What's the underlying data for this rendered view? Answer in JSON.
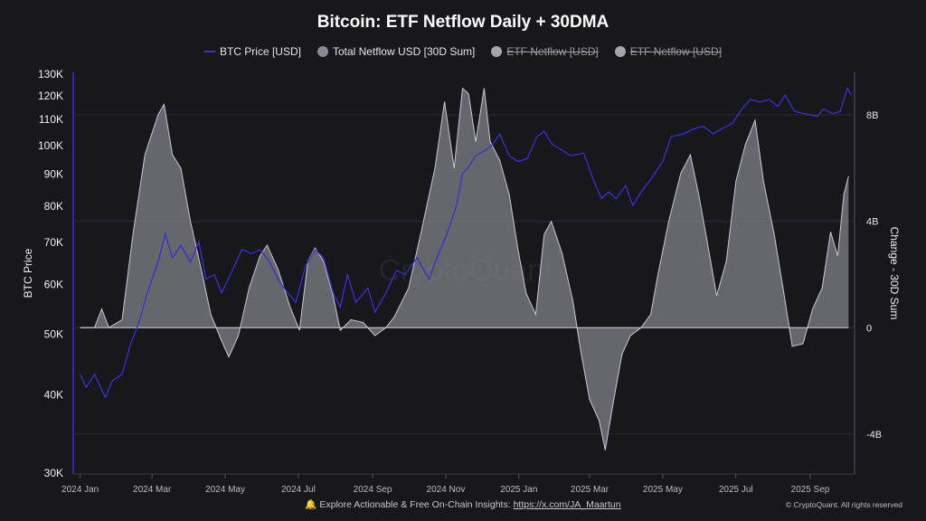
{
  "chart_data": {
    "type": "area+line",
    "title": "Bitcoin: ETF Netflow Daily + 30DMA",
    "legend": [
      {
        "name": "BTC Price [USD]",
        "color": "#3a2fd0",
        "enabled": true,
        "marker": "line"
      },
      {
        "name": "Total Netflow USD [30D Sum]",
        "color": "#8a8a93",
        "enabled": true,
        "marker": "dot"
      },
      {
        "name": "ETF Netflow [USD]",
        "color": "#a5a5ac",
        "enabled": false,
        "marker": "dot"
      },
      {
        "name": "ETF Netflow [USD]",
        "color": "#a5a5ac",
        "enabled": false,
        "marker": "dot"
      }
    ],
    "legend_placement": "top-center",
    "ylabel_left": "BTC Price",
    "ylabel_right": "Change - 30D Sum",
    "left_scale": "log",
    "left_ylim": [
      30000,
      130000
    ],
    "left_ticks": [
      "30K",
      "40K",
      "50K",
      "60K",
      "70K",
      "80K",
      "90K",
      "100K",
      "110K",
      "120K",
      "130K"
    ],
    "left_tick_values": [
      30000,
      40000,
      50000,
      60000,
      70000,
      80000,
      90000,
      100000,
      110000,
      120000,
      130000
    ],
    "right_ylim": [
      -5.5,
      9.6
    ],
    "right_ticks": [
      "-4B",
      "0",
      "4B",
      "8B"
    ],
    "right_tick_values": [
      -4,
      0,
      4,
      8
    ],
    "x_ticks": [
      "2024 Jan",
      "2024 Mar",
      "2024 May",
      "2024 Jul",
      "2024 Sep",
      "2024 Nov",
      "2025 Jan",
      "2025 Mar",
      "2025 May",
      "2025 Jul",
      "2025 Sep"
    ],
    "x_tick_dates": [
      "2024-01-01",
      "2024-03-01",
      "2024-05-01",
      "2024-07-01",
      "2024-09-01",
      "2024-11-01",
      "2025-01-01",
      "2025-03-01",
      "2025-05-01",
      "2025-07-01",
      "2025-09-01"
    ],
    "x_range": [
      "2023-12-27",
      "2025-10-08"
    ],
    "grid": "horizontal",
    "watermark": "CryptoQuant",
    "series": [
      {
        "name": "BTC Price [USD]",
        "axis": "left",
        "unit": "USD",
        "points": [
          [
            "2024-01-01",
            43000
          ],
          [
            "2024-01-06",
            41000
          ],
          [
            "2024-01-13",
            43000
          ],
          [
            "2024-01-22",
            39500
          ],
          [
            "2024-01-28",
            42000
          ],
          [
            "2024-02-05",
            43000
          ],
          [
            "2024-02-12",
            48000
          ],
          [
            "2024-02-19",
            52000
          ],
          [
            "2024-02-26",
            58000
          ],
          [
            "2024-03-06",
            65000
          ],
          [
            "2024-03-12",
            72000
          ],
          [
            "2024-03-18",
            66000
          ],
          [
            "2024-03-25",
            69000
          ],
          [
            "2024-04-02",
            65000
          ],
          [
            "2024-04-09",
            70000
          ],
          [
            "2024-04-15",
            61000
          ],
          [
            "2024-04-22",
            62000
          ],
          [
            "2024-04-28",
            58000
          ],
          [
            "2024-05-07",
            63000
          ],
          [
            "2024-05-15",
            68000
          ],
          [
            "2024-05-23",
            67000
          ],
          [
            "2024-05-30",
            68000
          ],
          [
            "2024-06-07",
            65000
          ],
          [
            "2024-06-14",
            61000
          ],
          [
            "2024-06-22",
            58000
          ],
          [
            "2024-06-29",
            56000
          ],
          [
            "2024-07-07",
            64000
          ],
          [
            "2024-07-15",
            68000
          ],
          [
            "2024-07-22",
            66000
          ],
          [
            "2024-07-30",
            58000
          ],
          [
            "2024-08-05",
            55000
          ],
          [
            "2024-08-11",
            62000
          ],
          [
            "2024-08-18",
            56000
          ],
          [
            "2024-08-28",
            59000
          ],
          [
            "2024-09-03",
            54000
          ],
          [
            "2024-09-12",
            58000
          ],
          [
            "2024-09-21",
            63000
          ],
          [
            "2024-09-28",
            62000
          ],
          [
            "2024-10-08",
            66000
          ],
          [
            "2024-10-18",
            61000
          ],
          [
            "2024-10-26",
            67000
          ],
          [
            "2024-11-02",
            72000
          ],
          [
            "2024-11-10",
            80000
          ],
          [
            "2024-11-15",
            90000
          ],
          [
            "2024-11-20",
            92000
          ],
          [
            "2024-11-26",
            96000
          ],
          [
            "2024-12-04",
            98000
          ],
          [
            "2024-12-10",
            100000
          ],
          [
            "2024-12-16",
            104000
          ],
          [
            "2024-12-24",
            96000
          ],
          [
            "2024-12-31",
            94000
          ],
          [
            "2025-01-08",
            95000
          ],
          [
            "2025-01-16",
            103000
          ],
          [
            "2025-01-22",
            105000
          ],
          [
            "2025-01-29",
            100000
          ],
          [
            "2025-02-06",
            98000
          ],
          [
            "2025-02-13",
            96000
          ],
          [
            "2025-02-24",
            97000
          ],
          [
            "2025-03-05",
            87000
          ],
          [
            "2025-03-11",
            82000
          ],
          [
            "2025-03-17",
            84000
          ],
          [
            "2025-03-23",
            82000
          ],
          [
            "2025-03-31",
            86000
          ],
          [
            "2025-04-06",
            80000
          ],
          [
            "2025-04-13",
            84000
          ],
          [
            "2025-04-21",
            88000
          ],
          [
            "2025-05-01",
            94000
          ],
          [
            "2025-05-08",
            103000
          ],
          [
            "2025-05-18",
            104000
          ],
          [
            "2025-05-27",
            106000
          ],
          [
            "2025-06-04",
            107000
          ],
          [
            "2025-06-12",
            104000
          ],
          [
            "2025-06-19",
            106000
          ],
          [
            "2025-06-28",
            108000
          ],
          [
            "2025-07-06",
            114000
          ],
          [
            "2025-07-13",
            118000
          ],
          [
            "2025-07-21",
            117000
          ],
          [
            "2025-07-29",
            118000
          ],
          [
            "2025-08-05",
            115000
          ],
          [
            "2025-08-11",
            120000
          ],
          [
            "2025-08-19",
            113000
          ],
          [
            "2025-08-28",
            112000
          ],
          [
            "2025-09-07",
            111000
          ],
          [
            "2025-09-12",
            114000
          ],
          [
            "2025-09-20",
            112000
          ],
          [
            "2025-09-26",
            113000
          ],
          [
            "2025-10-02",
            123000
          ],
          [
            "2025-10-05",
            120000
          ]
        ]
      },
      {
        "name": "Total Netflow USD [30D Sum]",
        "axis": "right",
        "unit": "B USD",
        "points": [
          [
            "2024-01-01",
            0
          ],
          [
            "2024-01-13",
            0
          ],
          [
            "2024-01-19",
            0.7
          ],
          [
            "2024-01-25",
            0
          ],
          [
            "2024-02-05",
            0.3
          ],
          [
            "2024-02-14",
            3.5
          ],
          [
            "2024-02-24",
            6.5
          ],
          [
            "2024-03-06",
            8.0
          ],
          [
            "2024-03-11",
            8.4
          ],
          [
            "2024-03-18",
            6.5
          ],
          [
            "2024-03-25",
            6.0
          ],
          [
            "2024-04-02",
            4.0
          ],
          [
            "2024-04-12",
            2.0
          ],
          [
            "2024-04-19",
            0.5
          ],
          [
            "2024-04-28",
            -0.5
          ],
          [
            "2024-05-04",
            -1.1
          ],
          [
            "2024-05-12",
            -0.3
          ],
          [
            "2024-05-21",
            1.5
          ],
          [
            "2024-05-30",
            2.7
          ],
          [
            "2024-06-05",
            3.1
          ],
          [
            "2024-06-14",
            2.2
          ],
          [
            "2024-06-24",
            0.8
          ],
          [
            "2024-07-02",
            -0.1
          ],
          [
            "2024-07-09",
            2.5
          ],
          [
            "2024-07-15",
            3.0
          ],
          [
            "2024-07-22",
            2.5
          ],
          [
            "2024-07-30",
            1.2
          ],
          [
            "2024-08-05",
            -0.1
          ],
          [
            "2024-08-14",
            0.3
          ],
          [
            "2024-08-24",
            0.2
          ],
          [
            "2024-09-03",
            -0.3
          ],
          [
            "2024-09-12",
            0
          ],
          [
            "2024-09-19",
            0.4
          ],
          [
            "2024-10-01",
            1.5
          ],
          [
            "2024-10-12",
            3.7
          ],
          [
            "2024-10-23",
            6.0
          ],
          [
            "2024-10-31",
            8.5
          ],
          [
            "2024-11-08",
            6.0
          ],
          [
            "2024-11-15",
            9.0
          ],
          [
            "2024-11-20",
            8.8
          ],
          [
            "2024-11-26",
            7.0
          ],
          [
            "2024-12-03",
            9.0
          ],
          [
            "2024-12-08",
            7.0
          ],
          [
            "2024-12-16",
            6.3
          ],
          [
            "2024-12-24",
            5.0
          ],
          [
            "2024-12-31",
            3.0
          ],
          [
            "2025-01-07",
            1.3
          ],
          [
            "2025-01-15",
            0.5
          ],
          [
            "2025-01-22",
            3.5
          ],
          [
            "2025-01-28",
            4.0
          ],
          [
            "2025-02-06",
            2.8
          ],
          [
            "2025-02-15",
            1.0
          ],
          [
            "2025-02-22",
            -1.0
          ],
          [
            "2025-03-01",
            -2.7
          ],
          [
            "2025-03-09",
            -3.5
          ],
          [
            "2025-03-14",
            -4.6
          ],
          [
            "2025-03-20",
            -3.0
          ],
          [
            "2025-03-28",
            -1.0
          ],
          [
            "2025-04-04",
            -0.3
          ],
          [
            "2025-04-13",
            0
          ],
          [
            "2025-04-21",
            0.5
          ],
          [
            "2025-04-27",
            2.0
          ],
          [
            "2025-05-06",
            4.0
          ],
          [
            "2025-05-16",
            5.8
          ],
          [
            "2025-05-24",
            6.5
          ],
          [
            "2025-05-31",
            5.0
          ],
          [
            "2025-06-08",
            3.0
          ],
          [
            "2025-06-15",
            1.2
          ],
          [
            "2025-06-23",
            2.5
          ],
          [
            "2025-07-01",
            5.5
          ],
          [
            "2025-07-09",
            6.9
          ],
          [
            "2025-07-17",
            7.8
          ],
          [
            "2025-07-24",
            5.5
          ],
          [
            "2025-08-02",
            3.5
          ],
          [
            "2025-08-10",
            1.3
          ],
          [
            "2025-08-17",
            -0.7
          ],
          [
            "2025-08-26",
            -0.6
          ],
          [
            "2025-09-03",
            0.7
          ],
          [
            "2025-09-11",
            1.5
          ],
          [
            "2025-09-18",
            3.6
          ],
          [
            "2025-09-24",
            2.7
          ],
          [
            "2025-09-29",
            5.0
          ],
          [
            "2025-10-03",
            5.7
          ]
        ]
      }
    ]
  },
  "footer": {
    "bell_icon": "bell-icon",
    "text": "Explore Actionable & Free On-Chain Insights: ",
    "link": "https://x.com/JA_Maartun",
    "copyright": "© CryptoQuant. All rights reserved"
  }
}
